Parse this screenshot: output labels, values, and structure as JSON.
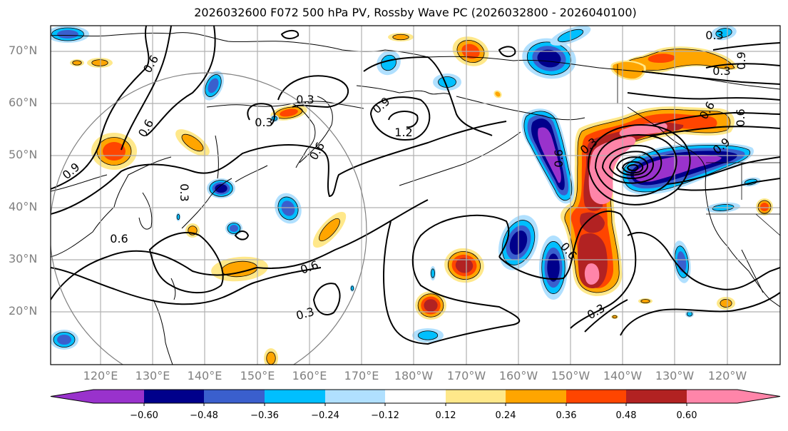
{
  "title": "2026032600 F072 500 hPa PV, Rossby Wave PC (2026032800 - 2026040100)",
  "map": {
    "projection": "equirectangular",
    "lon_range": [
      "110°E",
      "110°W"
    ],
    "lat_range": [
      "10°N",
      "75°N"
    ],
    "lat_labels": [
      "70°N",
      "60°N",
      "50°N",
      "40°N",
      "30°N",
      "20°N"
    ],
    "lon_labels": [
      "120°E",
      "130°E",
      "140°E",
      "150°E",
      "160°E",
      "170°E",
      "180°W",
      "170°W",
      "160°W",
      "150°W",
      "140°W",
      "130°W",
      "120°W"
    ],
    "contour_labels": [
      "0.6",
      "0.6",
      "0.3",
      "0.3",
      "0.9",
      "1.2",
      "0.6",
      "0.9",
      "0.3",
      "0.6",
      "0.6",
      "0.3",
      "0.3",
      "0.6",
      "0.3",
      "0.3",
      "0.9",
      "0.6",
      "0.6",
      "0.9",
      "0.6",
      "0.3"
    ],
    "contour_color": "#000000",
    "gridline_color": "#b0b0b0",
    "circle_color": "#808080"
  },
  "colorbar": {
    "ticks": [
      "−0.60",
      "−0.48",
      "−0.36",
      "−0.24",
      "−0.12",
      "0.12",
      "0.24",
      "0.36",
      "0.48",
      "0.60"
    ],
    "colors": [
      "#9932cc",
      "#00008b",
      "#3a5fcd",
      "#00bfff",
      "#b0e0ff",
      "#ffffff",
      "#ffe88a",
      "#ffa500",
      "#ff4500",
      "#b22222",
      "#ff85a9"
    ],
    "extend": "both"
  }
}
